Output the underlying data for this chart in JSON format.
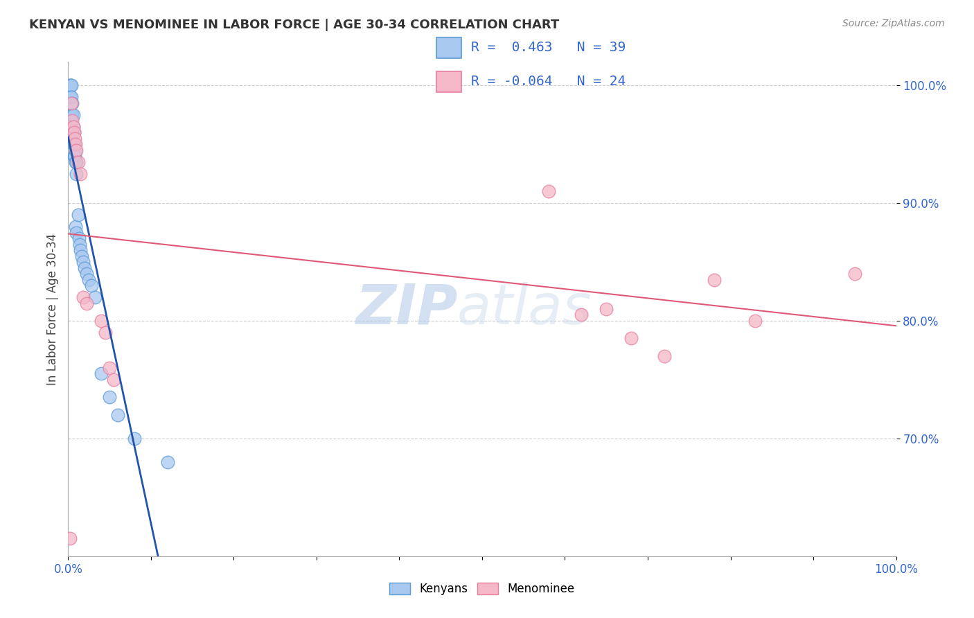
{
  "title": "KENYAN VS MENOMINEE IN LABOR FORCE | AGE 30-34 CORRELATION CHART",
  "source_text": "Source: ZipAtlas.com",
  "ylabel": "In Labor Force | Age 30-34",
  "xlim": [
    0.0,
    1.0
  ],
  "ylim": [
    0.6,
    1.02
  ],
  "x_tick_vals": [
    0.0,
    0.1,
    0.2,
    0.3,
    0.4,
    0.5,
    0.6,
    0.7,
    0.8,
    0.9,
    1.0
  ],
  "x_tick_labels_show": [
    "0.0%",
    "",
    "",
    "",
    "",
    "",
    "",
    "",
    "",
    "",
    "100.0%"
  ],
  "y_tick_vals": [
    0.7,
    0.8,
    0.9,
    1.0
  ],
  "y_tick_labels": [
    "70.0%",
    "80.0%",
    "90.0%",
    "100.0%"
  ],
  "kenyan_color": "#A8C8F0",
  "menominee_color": "#F4B8C8",
  "kenyan_edge_color": "#5B9BD5",
  "menominee_edge_color": "#E87DA0",
  "trend_kenyan_color": "#2255AA",
  "trend_menominee_color": "#E05878",
  "legend_R_kenyan": " 0.463",
  "legend_N_kenyan": "39",
  "legend_R_menominee": "-0.064",
  "legend_N_menominee": "24",
  "watermark_zip": "ZIP",
  "watermark_atlas": "atlas",
  "kenyan_x": [
    0.002,
    0.002,
    0.003,
    0.004,
    0.004,
    0.004,
    0.005,
    0.005,
    0.005,
    0.006,
    0.006,
    0.006,
    0.007,
    0.007,
    0.007,
    0.008,
    0.008,
    0.009,
    0.009,
    0.009,
    0.01,
    0.01,
    0.01,
    0.012,
    0.013,
    0.014,
    0.015,
    0.016,
    0.018,
    0.02,
    0.022,
    0.025,
    0.028,
    0.032,
    0.04,
    0.05,
    0.06,
    0.08,
    0.12
  ],
  "kenyan_y": [
    1.0,
    0.99,
    1.0,
    1.0,
    0.99,
    0.975,
    0.985,
    0.975,
    0.96,
    0.975,
    0.965,
    0.95,
    0.96,
    0.95,
    0.94,
    0.95,
    0.94,
    0.945,
    0.935,
    0.88,
    0.935,
    0.925,
    0.875,
    0.89,
    0.87,
    0.865,
    0.86,
    0.855,
    0.85,
    0.845,
    0.84,
    0.835,
    0.83,
    0.82,
    0.755,
    0.735,
    0.72,
    0.7,
    0.68
  ],
  "menominee_x": [
    0.002,
    0.004,
    0.005,
    0.006,
    0.007,
    0.008,
    0.009,
    0.01,
    0.012,
    0.015,
    0.018,
    0.022,
    0.04,
    0.045,
    0.05,
    0.055,
    0.58,
    0.62,
    0.65,
    0.68,
    0.72,
    0.78,
    0.83,
    0.95
  ],
  "menominee_y": [
    0.615,
    0.985,
    0.97,
    0.965,
    0.96,
    0.955,
    0.95,
    0.945,
    0.935,
    0.925,
    0.82,
    0.815,
    0.8,
    0.79,
    0.76,
    0.75,
    0.91,
    0.805,
    0.81,
    0.785,
    0.77,
    0.835,
    0.8,
    0.84
  ]
}
